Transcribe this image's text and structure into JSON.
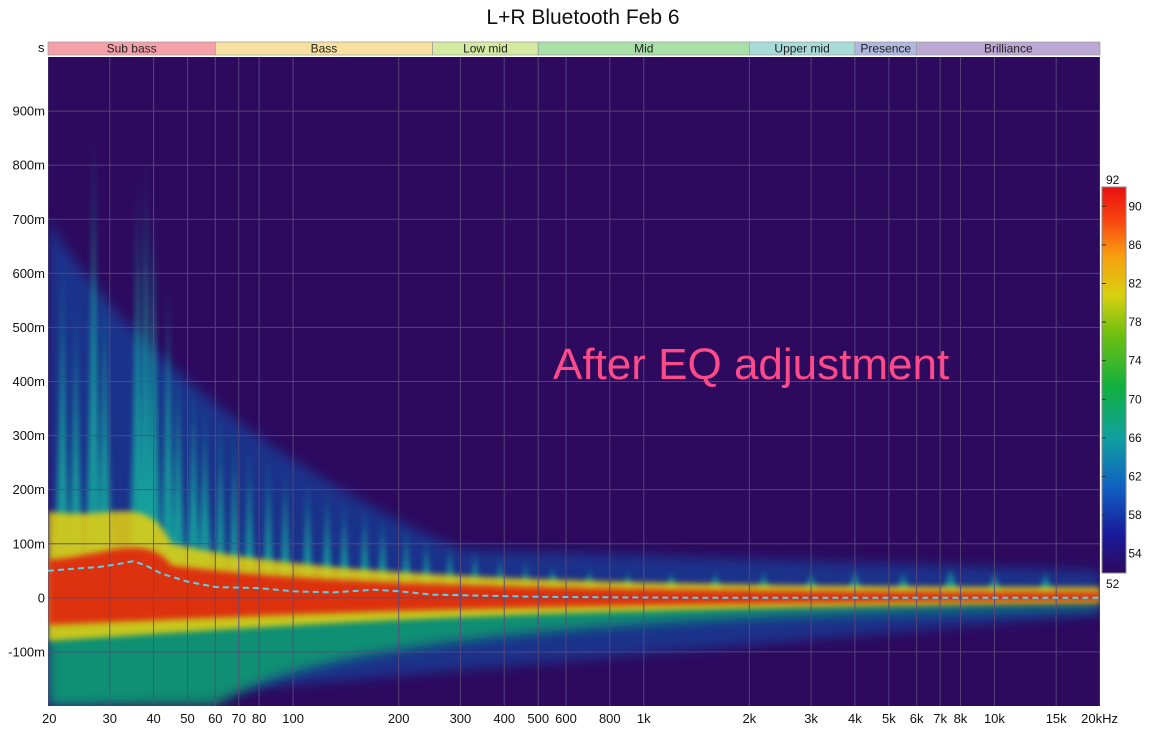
{
  "chart_data": {
    "type": "heatmap",
    "title": "L+R Bluetooth Feb 6",
    "annotation": "After EQ adjustment",
    "x_scale": "log",
    "xlim": [
      20,
      20000
    ],
    "x_ticks": [
      {
        "v": 20,
        "label": "20"
      },
      {
        "v": 30,
        "label": "30"
      },
      {
        "v": 40,
        "label": "40"
      },
      {
        "v": 50,
        "label": "50"
      },
      {
        "v": 60,
        "label": "60"
      },
      {
        "v": 70,
        "label": "70"
      },
      {
        "v": 80,
        "label": "80"
      },
      {
        "v": 100,
        "label": "100"
      },
      {
        "v": 200,
        "label": "200"
      },
      {
        "v": 300,
        "label": "300"
      },
      {
        "v": 400,
        "label": "400"
      },
      {
        "v": 500,
        "label": "500"
      },
      {
        "v": 600,
        "label": "600"
      },
      {
        "v": 800,
        "label": "800"
      },
      {
        "v": 1000,
        "label": "1k"
      },
      {
        "v": 2000,
        "label": "2k"
      },
      {
        "v": 3000,
        "label": "3k"
      },
      {
        "v": 4000,
        "label": "4k"
      },
      {
        "v": 5000,
        "label": "5k"
      },
      {
        "v": 6000,
        "label": "6k"
      },
      {
        "v": 7000,
        "label": "7k"
      },
      {
        "v": 8000,
        "label": "8k"
      },
      {
        "v": 10000,
        "label": "10k"
      },
      {
        "v": 15000,
        "label": "15k",
        "muted": true
      },
      {
        "v": 20000,
        "label": "20kHz"
      }
    ],
    "ylim": [
      -0.2,
      1.0
    ],
    "y_unit_label": "s",
    "y_ticks": [
      {
        "v": 0.9,
        "label": "900m"
      },
      {
        "v": 0.8,
        "label": "800m"
      },
      {
        "v": 0.7,
        "label": "700m"
      },
      {
        "v": 0.6,
        "label": "600m"
      },
      {
        "v": 0.5,
        "label": "500m"
      },
      {
        "v": 0.4,
        "label": "400m"
      },
      {
        "v": 0.3,
        "label": "300m"
      },
      {
        "v": 0.2,
        "label": "200m"
      },
      {
        "v": 0.1,
        "label": "100m"
      },
      {
        "v": 0.0,
        "label": "0"
      },
      {
        "v": -0.1,
        "label": "-100m"
      }
    ],
    "bands": [
      {
        "name": "Sub bass",
        "from": 20,
        "to": 60,
        "color": "#f4a0a8"
      },
      {
        "name": "Bass",
        "from": 60,
        "to": 250,
        "color": "#f7e0a0"
      },
      {
        "name": "Low mid",
        "from": 250,
        "to": 500,
        "color": "#d4eaa0"
      },
      {
        "name": "Mid",
        "from": 500,
        "to": 2000,
        "color": "#a8e0a8"
      },
      {
        "name": "Upper mid",
        "from": 2000,
        "to": 4000,
        "color": "#a8dcd8"
      },
      {
        "name": "Presence",
        "from": 4000,
        "to": 6000,
        "color": "#b0b8e0"
      },
      {
        "name": "Brilliance",
        "from": 6000,
        "to": 20000,
        "color": "#bca8d4"
      }
    ],
    "colorbar": {
      "min": 52,
      "max": 92,
      "top_label": "92",
      "bottom_label": "52",
      "tick_labels": [
        "90",
        "86",
        "82",
        "78",
        "74",
        "70",
        "66",
        "62",
        "58",
        "54"
      ],
      "tick_values": [
        90,
        86,
        82,
        78,
        74,
        70,
        66,
        62,
        58,
        54
      ]
    },
    "peak_delay_curve": {
      "freq": [
        20,
        25,
        28,
        32,
        35,
        38,
        42,
        50,
        60,
        80,
        100,
        130,
        170,
        200,
        250,
        350,
        500,
        800,
        1500,
        3000,
        6000,
        10000,
        20000
      ],
      "delay_s": [
        0.05,
        0.055,
        0.057,
        0.063,
        0.068,
        0.06,
        0.045,
        0.03,
        0.02,
        0.018,
        0.012,
        0.01,
        0.015,
        0.012,
        0.006,
        0.004,
        0.002,
        0.001,
        0.0,
        0.0,
        0.0,
        0.0,
        0.0
      ]
    },
    "ridges": [
      {
        "freq": 22,
        "top": 0.62
      },
      {
        "freq": 24,
        "top": 0.55
      },
      {
        "freq": 27,
        "top": 0.86
      },
      {
        "freq": 29,
        "top": 0.6
      },
      {
        "freq": 36,
        "top": 0.78
      },
      {
        "freq": 38,
        "top": 0.82
      },
      {
        "freq": 40,
        "top": 0.72
      },
      {
        "freq": 44,
        "top": 0.58
      },
      {
        "freq": 47,
        "top": 0.44
      },
      {
        "freq": 52,
        "top": 0.4
      },
      {
        "freq": 56,
        "top": 0.36
      },
      {
        "freq": 62,
        "top": 0.34
      },
      {
        "freq": 68,
        "top": 0.31
      },
      {
        "freq": 75,
        "top": 0.28
      },
      {
        "freq": 85,
        "top": 0.26
      },
      {
        "freq": 95,
        "top": 0.24
      },
      {
        "freq": 110,
        "top": 0.22
      },
      {
        "freq": 125,
        "top": 0.2
      },
      {
        "freq": 140,
        "top": 0.18
      },
      {
        "freq": 160,
        "top": 0.17
      },
      {
        "freq": 180,
        "top": 0.15
      },
      {
        "freq": 210,
        "top": 0.13
      },
      {
        "freq": 240,
        "top": 0.11
      },
      {
        "freq": 280,
        "top": 0.1
      },
      {
        "freq": 330,
        "top": 0.09
      },
      {
        "freq": 390,
        "top": 0.08
      },
      {
        "freq": 460,
        "top": 0.07
      },
      {
        "freq": 550,
        "top": 0.06
      },
      {
        "freq": 700,
        "top": 0.055
      },
      {
        "freq": 900,
        "top": 0.05
      },
      {
        "freq": 1200,
        "top": 0.05
      },
      {
        "freq": 1600,
        "top": 0.05
      },
      {
        "freq": 2200,
        "top": 0.05
      },
      {
        "freq": 3000,
        "top": 0.05
      },
      {
        "freq": 4000,
        "top": 0.055
      },
      {
        "freq": 5500,
        "top": 0.05
      },
      {
        "freq": 7500,
        "top": 0.06
      },
      {
        "freq": 10000,
        "top": 0.05
      },
      {
        "freq": 14000,
        "top": 0.05
      }
    ],
    "colors": {
      "background": "#2d0a5e",
      "annotation": "#ff4a8a",
      "curve": "#5ad0e8",
      "grid": "#5a4a7a"
    }
  }
}
